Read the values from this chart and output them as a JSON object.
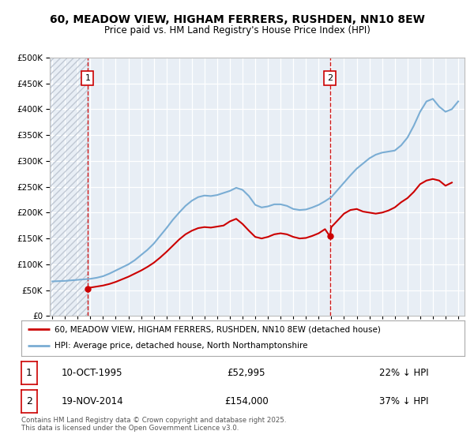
{
  "title": "60, MEADOW VIEW, HIGHAM FERRERS, RUSHDEN, NN10 8EW",
  "subtitle": "Price paid vs. HM Land Registry's House Price Index (HPI)",
  "legend_line1": "60, MEADOW VIEW, HIGHAM FERRERS, RUSHDEN, NN10 8EW (detached house)",
  "legend_line2": "HPI: Average price, detached house, North Northamptonshire",
  "footer": "Contains HM Land Registry data © Crown copyright and database right 2025.\nThis data is licensed under the Open Government Licence v3.0.",
  "sale1_date": "10-OCT-1995",
  "sale1_price": "£52,995",
  "sale1_hpi": "22% ↓ HPI",
  "sale2_date": "19-NOV-2014",
  "sale2_price": "£154,000",
  "sale2_hpi": "37% ↓ HPI",
  "sale_color": "#cc0000",
  "hpi_color": "#7aadd4",
  "fig_bg": "#ffffff",
  "plot_bg": "#e8eef5",
  "grid_color": "#ffffff",
  "hatch_color": "#c0c8d4",
  "sale_points": [
    {
      "year": 1995.78,
      "price": 52995
    },
    {
      "year": 2014.89,
      "price": 154000
    }
  ],
  "ylim": [
    0,
    500000
  ],
  "yticks": [
    0,
    50000,
    100000,
    150000,
    200000,
    250000,
    300000,
    350000,
    400000,
    450000,
    500000
  ],
  "ytick_labels": [
    "£0",
    "£50K",
    "£100K",
    "£150K",
    "£200K",
    "£250K",
    "£300K",
    "£350K",
    "£400K",
    "£450K",
    "£500K"
  ],
  "xmin": 1992.8,
  "xmax": 2025.5,
  "hpi_years": [
    1993,
    1993.5,
    1994,
    1994.5,
    1995,
    1995.5,
    1996,
    1996.5,
    1997,
    1997.5,
    1998,
    1998.5,
    1999,
    1999.5,
    2000,
    2000.5,
    2001,
    2001.5,
    2002,
    2002.5,
    2003,
    2003.5,
    2004,
    2004.5,
    2005,
    2005.5,
    2006,
    2006.5,
    2007,
    2007.5,
    2008,
    2008.5,
    2009,
    2009.5,
    2010,
    2010.5,
    2011,
    2011.5,
    2012,
    2012.5,
    2013,
    2013.5,
    2014,
    2014.5,
    2015,
    2015.5,
    2016,
    2016.5,
    2017,
    2017.5,
    2018,
    2018.5,
    2019,
    2019.5,
    2020,
    2020.5,
    2021,
    2021.5,
    2022,
    2022.5,
    2023,
    2023.5,
    2024,
    2024.5,
    2025
  ],
  "hpi_values": [
    67000,
    67500,
    68000,
    69000,
    70000,
    71000,
    72000,
    74000,
    77000,
    82000,
    88000,
    94000,
    100000,
    108000,
    118000,
    128000,
    140000,
    155000,
    170000,
    186000,
    200000,
    213000,
    223000,
    230000,
    233000,
    232000,
    234000,
    238000,
    242000,
    248000,
    244000,
    232000,
    215000,
    210000,
    212000,
    216000,
    216000,
    213000,
    207000,
    205000,
    206000,
    210000,
    215000,
    222000,
    230000,
    244000,
    258000,
    272000,
    285000,
    295000,
    305000,
    312000,
    316000,
    318000,
    320000,
    330000,
    345000,
    368000,
    395000,
    415000,
    420000,
    405000,
    395000,
    400000,
    415000
  ],
  "red_years": [
    1995.78,
    1996,
    1996.5,
    1997,
    1997.5,
    1998,
    1998.5,
    1999,
    1999.5,
    2000,
    2000.5,
    2001,
    2001.5,
    2002,
    2002.5,
    2003,
    2003.5,
    2004,
    2004.5,
    2005,
    2005.5,
    2006,
    2006.5,
    2007,
    2007.5,
    2008,
    2008.5,
    2009,
    2009.5,
    2010,
    2010.5,
    2011,
    2011.5,
    2012,
    2012.5,
    2013,
    2013.5,
    2014,
    2014.5,
    2014.89,
    2015,
    2015.5,
    2016,
    2016.5,
    2017,
    2017.5,
    2018,
    2018.5,
    2019,
    2019.5,
    2020,
    2020.5,
    2021,
    2021.5,
    2022,
    2022.5,
    2023,
    2023.5,
    2024,
    2024.5
  ],
  "red_values": [
    52995,
    55000,
    57000,
    59000,
    62000,
    66000,
    71000,
    76000,
    82000,
    88000,
    95000,
    103000,
    113000,
    124000,
    136000,
    148000,
    158000,
    165000,
    170000,
    172000,
    171000,
    173000,
    175000,
    183000,
    188000,
    178000,
    165000,
    153000,
    150000,
    153000,
    158000,
    160000,
    158000,
    153000,
    150000,
    151000,
    155000,
    160000,
    168000,
    154000,
    172000,
    185000,
    198000,
    205000,
    207000,
    202000,
    200000,
    198000,
    200000,
    204000,
    210000,
    220000,
    228000,
    240000,
    255000,
    262000,
    265000,
    262000,
    252000,
    258000
  ]
}
